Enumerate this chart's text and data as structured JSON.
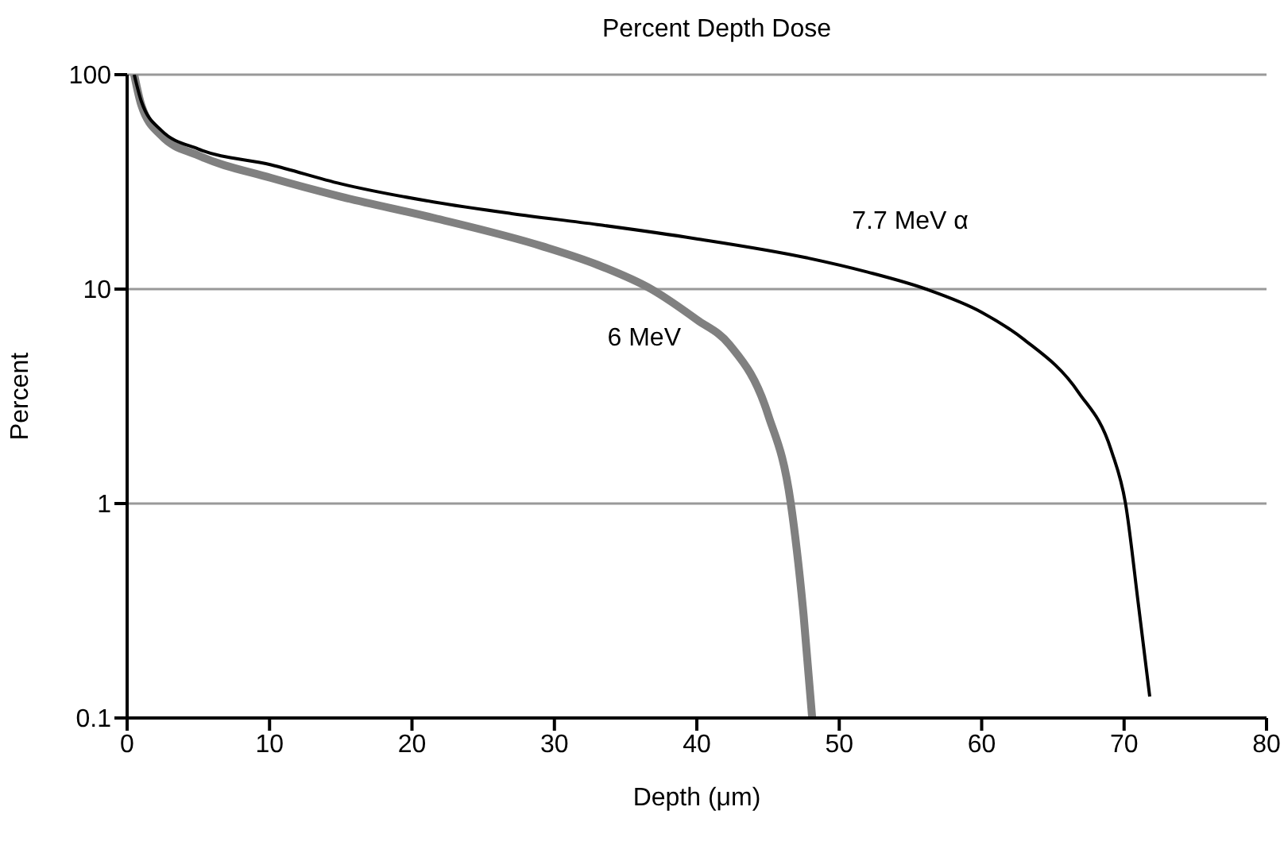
{
  "chart_data": {
    "type": "line",
    "title": "Percent Depth Dose",
    "xlabel": "Depth (μm)",
    "ylabel": "Percent",
    "log": "y",
    "grid": "y",
    "legend": false,
    "marker": "none",
    "line_style": "solid",
    "xlim": [
      0,
      80
    ],
    "xticks": [
      0,
      10,
      20,
      30,
      40,
      50,
      60,
      70,
      80
    ],
    "ylim": [
      0.1,
      100
    ],
    "yticks": [
      0.1,
      1,
      10,
      100
    ],
    "series": [
      {
        "name": "7.7 MeV α",
        "color": "#000000",
        "x": [
          0.5,
          1,
          2.4,
          5,
          10.1,
          15,
          21.5,
          27,
          33,
          39.9,
          47.7,
          52,
          56.1,
          60,
          63,
          66.8,
          69.1,
          70.1,
          71,
          71.8
        ],
        "values": [
          100,
          75,
          55,
          45,
          38,
          31,
          25.5,
          22.5,
          20,
          17.2,
          14,
          12,
          10,
          7.8,
          5.8,
          3.3,
          1.77,
          1,
          0.34,
          0.126
        ]
      },
      {
        "name": "6 MeV",
        "color": "#808080",
        "x": [
          0.5,
          1,
          2.4,
          5,
          10.1,
          15,
          21.5,
          29.2,
          33,
          36.8,
          40,
          42.3,
          45,
          46.6,
          47.5,
          48.1
        ],
        "values": [
          100,
          72,
          52,
          42,
          33,
          27,
          21.5,
          15.8,
          13,
          10,
          7.2,
          5.5,
          2.6,
          1,
          0.3,
          0.1
        ]
      }
    ]
  }
}
